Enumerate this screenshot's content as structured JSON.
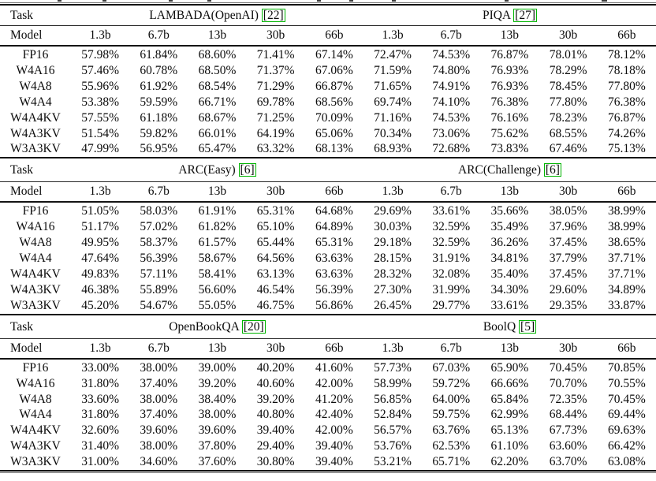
{
  "colors": {
    "background": "#ffffff",
    "text": "#0c0c0c",
    "rule": "#141414",
    "citation_border": "#00b400"
  },
  "table": {
    "task_label": "Task",
    "model_label": "Model",
    "size_headers": [
      "1.3b",
      "6.7b",
      "13b",
      "30b",
      "66b"
    ],
    "sections": [
      {
        "left": {
          "name": "LAMBADA(OpenAI)",
          "cite": "[22]"
        },
        "right": {
          "name": "PIQA",
          "cite": "[27]"
        },
        "rows": [
          {
            "model": "FP16",
            "values": [
              "57.98%",
              "61.84%",
              "68.60%",
              "71.41%",
              "67.14%",
              "72.47%",
              "74.53%",
              "76.87%",
              "78.01%",
              "78.12%"
            ]
          },
          {
            "model": "W4A16",
            "values": [
              "57.46%",
              "60.78%",
              "68.50%",
              "71.37%",
              "67.06%",
              "71.59%",
              "74.80%",
              "76.93%",
              "78.29%",
              "78.18%"
            ]
          },
          {
            "model": "W4A8",
            "values": [
              "55.96%",
              "61.92%",
              "68.54%",
              "71.29%",
              "66.87%",
              "71.65%",
              "74.91%",
              "76.93%",
              "78.45%",
              "77.80%"
            ]
          },
          {
            "model": "W4A4",
            "values": [
              "53.38%",
              "59.59%",
              "66.71%",
              "69.78%",
              "68.56%",
              "69.74%",
              "74.10%",
              "76.38%",
              "77.80%",
              "76.38%"
            ]
          },
          {
            "model": "W4A4KV",
            "values": [
              "57.55%",
              "61.18%",
              "68.67%",
              "71.25%",
              "70.09%",
              "71.16%",
              "74.53%",
              "76.16%",
              "78.23%",
              "76.87%"
            ]
          },
          {
            "model": "W4A3KV",
            "values": [
              "51.54%",
              "59.82%",
              "66.01%",
              "64.19%",
              "65.06%",
              "70.34%",
              "73.06%",
              "75.62%",
              "68.55%",
              "74.26%"
            ]
          },
          {
            "model": "W3A3KV",
            "values": [
              "47.99%",
              "56.95%",
              "65.47%",
              "63.32%",
              "68.13%",
              "68.93%",
              "72.68%",
              "73.83%",
              "67.46%",
              "75.13%"
            ]
          }
        ]
      },
      {
        "left": {
          "name": "ARC(Easy)",
          "cite": "[6]"
        },
        "right": {
          "name": "ARC(Challenge)",
          "cite": "[6]"
        },
        "rows": [
          {
            "model": "FP16",
            "values": [
              "51.05%",
              "58.03%",
              "61.91%",
              "65.31%",
              "64.68%",
              "29.69%",
              "33.61%",
              "35.66%",
              "38.05%",
              "38.99%"
            ]
          },
          {
            "model": "W4A16",
            "values": [
              "51.17%",
              "57.02%",
              "61.82%",
              "65.10%",
              "64.89%",
              "30.03%",
              "32.59%",
              "35.49%",
              "37.96%",
              "38.99%"
            ]
          },
          {
            "model": "W4A8",
            "values": [
              "49.95%",
              "58.37%",
              "61.57%",
              "65.44%",
              "65.31%",
              "29.18%",
              "32.59%",
              "36.26%",
              "37.45%",
              "38.65%"
            ]
          },
          {
            "model": "W4A4",
            "values": [
              "47.64%",
              "56.39%",
              "58.67%",
              "64.56%",
              "63.63%",
              "28.15%",
              "31.91%",
              "34.81%",
              "37.79%",
              "37.71%"
            ]
          },
          {
            "model": "W4A4KV",
            "values": [
              "49.83%",
              "57.11%",
              "58.41%",
              "63.13%",
              "63.63%",
              "28.32%",
              "32.08%",
              "35.40%",
              "37.45%",
              "37.71%"
            ]
          },
          {
            "model": "W4A3KV",
            "values": [
              "46.38%",
              "55.89%",
              "56.60%",
              "46.54%",
              "56.39%",
              "27.30%",
              "31.99%",
              "34.30%",
              "29.60%",
              "34.89%"
            ]
          },
          {
            "model": "W3A3KV",
            "values": [
              "45.20%",
              "54.67%",
              "55.05%",
              "46.75%",
              "56.86%",
              "26.45%",
              "29.77%",
              "33.61%",
              "29.35%",
              "33.87%"
            ]
          }
        ]
      },
      {
        "left": {
          "name": "OpenBookQA",
          "cite": "[20]"
        },
        "right": {
          "name": "BoolQ",
          "cite": "[5]"
        },
        "rows": [
          {
            "model": "FP16",
            "values": [
              "33.00%",
              "38.00%",
              "39.00%",
              "40.20%",
              "41.60%",
              "57.73%",
              "67.03%",
              "65.90%",
              "70.45%",
              "70.85%"
            ]
          },
          {
            "model": "W4A16",
            "values": [
              "31.80%",
              "37.40%",
              "39.20%",
              "40.60%",
              "42.00%",
              "58.99%",
              "59.72%",
              "66.66%",
              "70.70%",
              "70.55%"
            ]
          },
          {
            "model": "W4A8",
            "values": [
              "33.60%",
              "38.00%",
              "38.40%",
              "39.20%",
              "41.20%",
              "56.85%",
              "64.00%",
              "65.84%",
              "72.35%",
              "70.45%"
            ]
          },
          {
            "model": "W4A4",
            "values": [
              "31.80%",
              "37.40%",
              "38.00%",
              "40.80%",
              "42.40%",
              "52.84%",
              "59.75%",
              "62.99%",
              "68.44%",
              "69.44%"
            ]
          },
          {
            "model": "W4A4KV",
            "values": [
              "32.60%",
              "39.60%",
              "39.60%",
              "39.40%",
              "42.00%",
              "56.57%",
              "63.76%",
              "65.13%",
              "67.73%",
              "69.63%"
            ]
          },
          {
            "model": "W4A3KV",
            "values": [
              "31.40%",
              "38.00%",
              "37.80%",
              "29.40%",
              "39.40%",
              "53.76%",
              "62.53%",
              "61.10%",
              "63.60%",
              "66.42%"
            ]
          },
          {
            "model": "W3A3KV",
            "values": [
              "31.00%",
              "34.60%",
              "37.60%",
              "30.80%",
              "39.40%",
              "53.21%",
              "65.71%",
              "62.20%",
              "63.70%",
              "63.08%"
            ]
          }
        ]
      }
    ]
  }
}
